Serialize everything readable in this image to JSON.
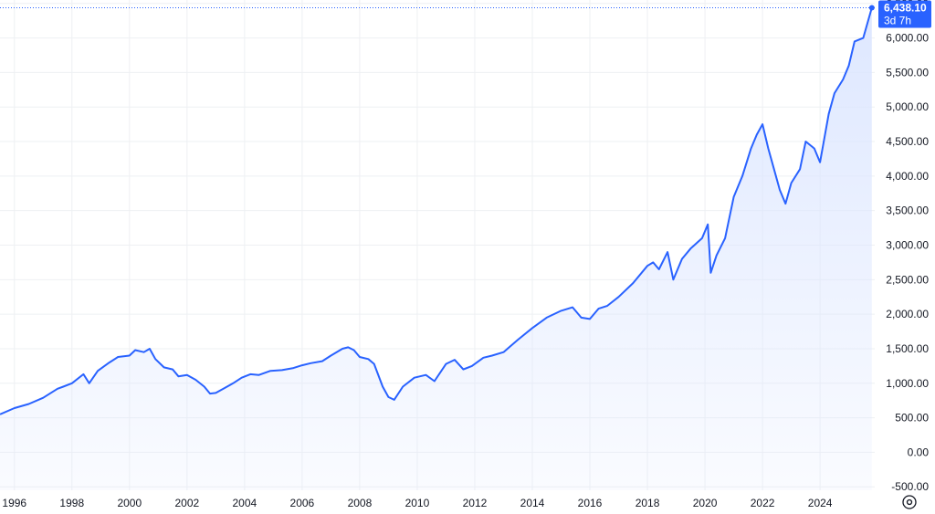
{
  "chart_data": {
    "type": "area",
    "title": "",
    "xlabel": "",
    "ylabel": "",
    "x_ticks": [
      "1996",
      "1998",
      "2000",
      "2002",
      "2004",
      "2006",
      "2008",
      "2010",
      "2012",
      "2014",
      "2016",
      "2018",
      "2020",
      "2022",
      "2024"
    ],
    "y_ticks": [
      "-500.00",
      "0.00",
      "500.00",
      "1,000.00",
      "1,500.00",
      "2,000.00",
      "2,500.00",
      "3,000.00",
      "3,500.00",
      "4,000.00",
      "4,500.00",
      "5,000.00",
      "5,500.00",
      "6,000.00",
      "6,500.00"
    ],
    "y_tick_values": [
      -500,
      0,
      500,
      1000,
      1500,
      2000,
      2500,
      3000,
      3500,
      4000,
      4500,
      5000,
      5500,
      6000,
      6500
    ],
    "xlim": [
      1995.5,
      2025.9
    ],
    "ylim": [
      -550,
      6550
    ],
    "grid": true,
    "line_color": "#2962ff",
    "fill_color": "#dce6ff",
    "series": [
      {
        "x": [
          1995.5,
          1996.0,
          1996.5,
          1997.0,
          1997.5,
          1997.7,
          1998.0,
          1998.4,
          1998.6,
          1998.9,
          1999.3,
          1999.6,
          2000.0,
          2000.2,
          2000.5,
          2000.7,
          2000.9,
          2001.2,
          2001.5,
          2001.7,
          2002.0,
          2002.3,
          2002.6,
          2002.8,
          2003.0,
          2003.3,
          2003.6,
          2003.9,
          2004.2,
          2004.5,
          2004.9,
          2005.3,
          2005.7,
          2006.0,
          2006.3,
          2006.7,
          2007.0,
          2007.4,
          2007.6,
          2007.8,
          2008.0,
          2008.3,
          2008.5,
          2008.8,
          2009.0,
          2009.2,
          2009.5,
          2009.9,
          2010.3,
          2010.6,
          2011.0,
          2011.3,
          2011.6,
          2011.9,
          2012.3,
          2012.6,
          2013.0,
          2013.5,
          2014.0,
          2014.5,
          2015.0,
          2015.4,
          2015.7,
          2016.0,
          2016.3,
          2016.6,
          2017.0,
          2017.5,
          2018.0,
          2018.2,
          2018.4,
          2018.7,
          2018.9,
          2019.2,
          2019.5,
          2019.9,
          2020.1,
          2020.2,
          2020.4,
          2020.7,
          2021.0,
          2021.3,
          2021.6,
          2021.8,
          2022.0,
          2022.2,
          2022.4,
          2022.6,
          2022.8,
          2023.0,
          2023.3,
          2023.5,
          2023.8,
          2024.0,
          2024.3,
          2024.5,
          2024.8,
          2025.0,
          2025.2,
          2025.5,
          2025.8
        ],
        "y": [
          550,
          640,
          700,
          790,
          920,
          950,
          1000,
          1130,
          1000,
          1180,
          1300,
          1380,
          1400,
          1480,
          1450,
          1500,
          1350,
          1230,
          1200,
          1100,
          1120,
          1050,
          950,
          850,
          860,
          930,
          1000,
          1080,
          1130,
          1120,
          1180,
          1190,
          1220,
          1260,
          1290,
          1320,
          1400,
          1500,
          1520,
          1480,
          1380,
          1350,
          1280,
          950,
          800,
          760,
          950,
          1080,
          1120,
          1030,
          1280,
          1340,
          1200,
          1250,
          1370,
          1400,
          1450,
          1630,
          1800,
          1950,
          2050,
          2100,
          1950,
          1930,
          2080,
          2120,
          2250,
          2450,
          2700,
          2750,
          2650,
          2900,
          2500,
          2800,
          2950,
          3100,
          3300,
          2600,
          2850,
          3100,
          3700,
          4000,
          4400,
          4600,
          4750,
          4400,
          4100,
          3800,
          3600,
          3900,
          4100,
          4500,
          4400,
          4200,
          4900,
          5200,
          5400,
          5600,
          5950,
          6000,
          6438
        ]
      }
    ],
    "last_value_badge": {
      "value": "6,438.10",
      "countdown": "3d 7h",
      "color": "#2962ff"
    }
  },
  "controls": {
    "settings_icon": "gear-icon"
  }
}
